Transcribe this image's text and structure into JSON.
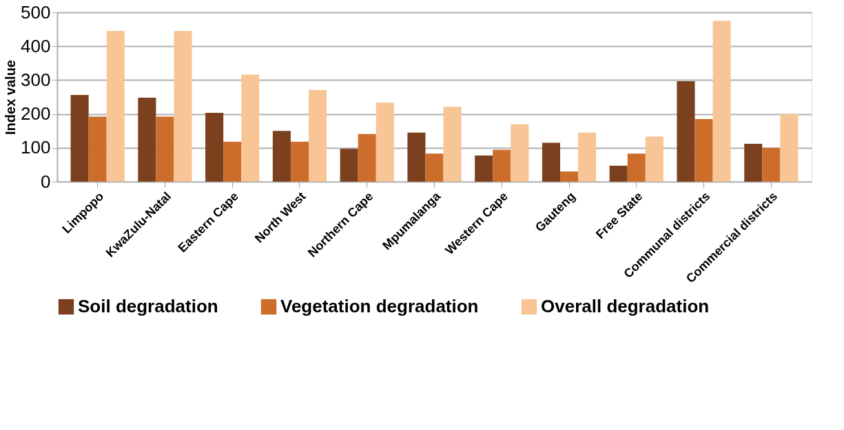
{
  "chart_data": {
    "type": "bar",
    "ylabel": "Index value",
    "categories": [
      "Limpopo",
      "KwaZulu-Natal",
      "Eastern Cape",
      "North West",
      "Northern Cape",
      "Mpumalanga",
      "Western Cape",
      "Gauteng",
      "Free State",
      "Communal districts",
      "Commercial districts"
    ],
    "series": [
      {
        "name": "Soil degradation",
        "color": "#7b401d",
        "values": [
          256,
          248,
          203,
          150,
          97,
          145,
          77,
          115,
          47,
          297,
          112
        ]
      },
      {
        "name": "Vegetation degradation",
        "color": "#cd6d2b",
        "values": [
          192,
          192,
          118,
          118,
          141,
          83,
          94,
          30,
          83,
          185,
          100
        ]
      },
      {
        "name": "Overall degradation",
        "color": "#f8c596",
        "values": [
          445,
          445,
          316,
          271,
          233,
          221,
          169,
          145,
          133,
          475,
          200
        ]
      }
    ],
    "ylim": [
      0,
      500
    ],
    "yticks": [
      0,
      100,
      200,
      300,
      400,
      500
    ],
    "grid": "y",
    "legend": "bottom"
  }
}
